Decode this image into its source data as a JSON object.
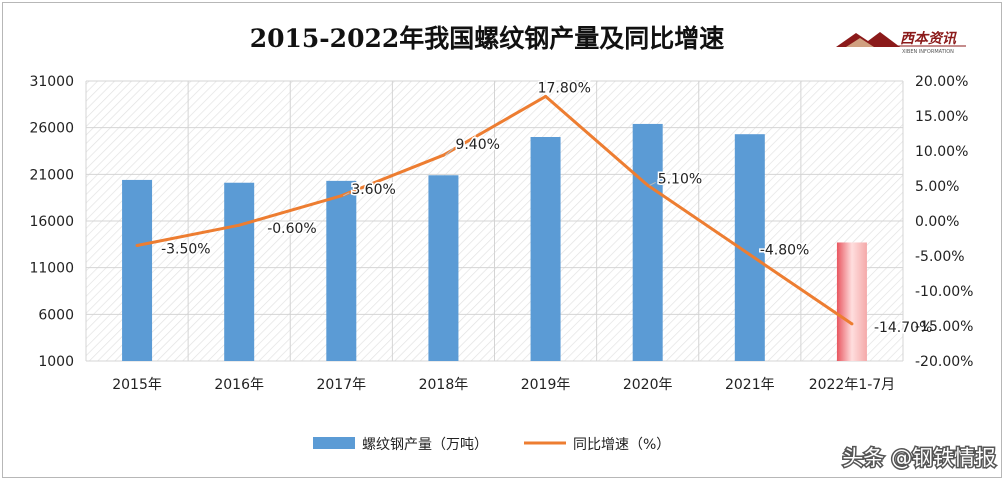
{
  "chart_data": {
    "type": "bar",
    "title": "2015-2022年我国螺纹钢产量及同比增速",
    "categories": [
      "2015年",
      "2016年",
      "2017年",
      "2018年",
      "2019年",
      "2020年",
      "2021年",
      "2022年1-7月"
    ],
    "series": [
      {
        "name": "螺纹钢产量（万吨）",
        "type": "bar",
        "axis": "left",
        "values": [
          20400,
          20100,
          20300,
          20900,
          25000,
          26400,
          25300,
          13700
        ]
      },
      {
        "name": "同比增速（%）",
        "type": "line",
        "axis": "right",
        "values": [
          -3.5,
          -0.6,
          3.6,
          9.4,
          17.8,
          5.1,
          -4.8,
          -14.7
        ]
      }
    ],
    "data_labels": [
      "-3.50%",
      "-0.60%",
      "3.60%",
      "9.40%",
      "17.80%",
      "5.10%",
      "-4.80%",
      "-14.70%"
    ],
    "y_left": {
      "ticks": [
        "31000",
        "26000",
        "21000",
        "16000",
        "11000",
        "6000",
        "1000"
      ],
      "ylim": [
        1000,
        31000
      ]
    },
    "y_right": {
      "ticks": [
        "20.00%",
        "15.00%",
        "10.00%",
        "5.00%",
        "0.00%",
        "-5.00%",
        "-10.00%",
        "-15.00%",
        "-20.00%"
      ],
      "ylim": [
        -20,
        20
      ]
    },
    "grid": true,
    "grid_style": "hatched",
    "legend_position": "bottom",
    "colors": {
      "bar": "#5b9bd5",
      "bar_highlight_top": "#f4a9a9",
      "bar_highlight_mid": "#ffdede",
      "bar_highlight_edge": "#e8565f",
      "line": "#ed7d31"
    }
  },
  "logo": {
    "text": "西本资讯",
    "sub": "XIBEN INFORMATION"
  },
  "watermark": "头条 @钢铁情报"
}
